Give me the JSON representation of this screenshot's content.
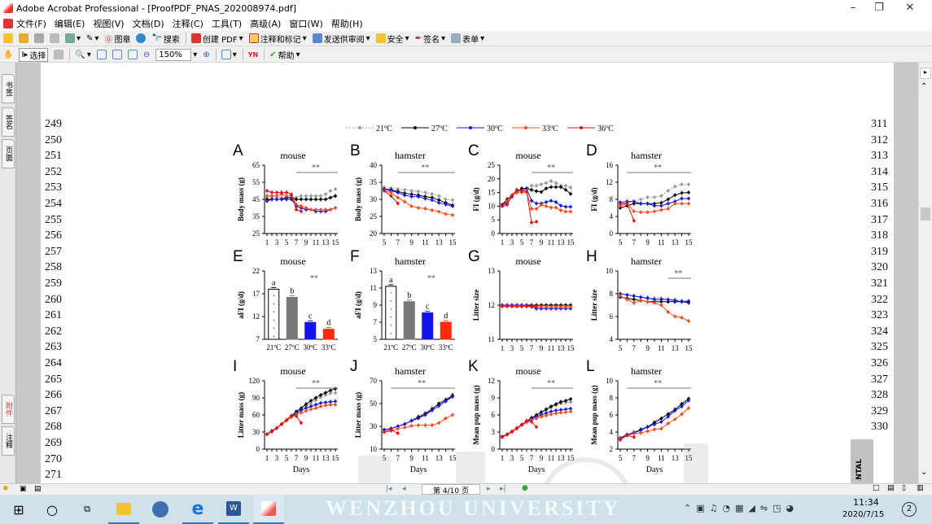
{
  "window": {
    "title": "Adobe Acrobat Professional - [ProofPDF_PNAS_202008974.pdf]"
  },
  "menu": [
    "文件(F)",
    "编辑(E)",
    "视图(V)",
    "文档(D)",
    "注释(C)",
    "工具(T)",
    "高级(A)",
    "窗口(W)",
    "帮助(H)"
  ],
  "toolbar1": {
    "stamp": "图章",
    "search": "搜索",
    "create_pdf": "创建 PDF",
    "comment": "注释和标记",
    "send": "发送供审阅",
    "security": "安全",
    "sign": "签名",
    "forms": "表单"
  },
  "toolbar2": {
    "select": "选择",
    "zoom": "150%",
    "help": "帮助"
  },
  "nav_tabs": {
    "bookmarks": "书签",
    "signatures": "签名",
    "pages": "页面",
    "attachments": "附件",
    "comments": "注释"
  },
  "line_numbers_left": [
    "249",
    "250",
    "251",
    "252",
    "253",
    "254",
    "255",
    "256",
    "257",
    "258",
    "259",
    "260",
    "261",
    "262",
    "263",
    "264",
    "265",
    "266",
    "267",
    "268",
    "269",
    "270",
    "271"
  ],
  "line_numbers_right": [
    "311",
    "312",
    "313",
    "314",
    "315",
    "316",
    "317",
    "318",
    "319",
    "320",
    "321",
    "322",
    "323",
    "324",
    "325",
    "326",
    "327",
    "328",
    "329",
    "330"
  ],
  "side_text": "NTAL",
  "status": {
    "page": "第 4/10 页"
  },
  "taskbar": {
    "time": "11:34",
    "date": "2020/7/15",
    "notifications": "2"
  },
  "watermark": "WENZHOU UNIVERSITY",
  "colors": {
    "21": "#999999",
    "27": "#000000",
    "30": "#1414e6",
    "33": "#ff4a1a",
    "36": "#e01010"
  },
  "chart_data": {
    "legend": [
      "21ºC",
      "27ºC",
      "30ºC",
      "33ºC",
      "36ºC"
    ],
    "panels": [
      {
        "letter": "A",
        "title": "mouse",
        "type": "line",
        "ylabel": "Body mass (g)",
        "xlabel": "",
        "x": [
          1,
          15
        ],
        "ylim": [
          25,
          65
        ],
        "yticks": [
          25,
          35,
          45,
          55,
          65
        ],
        "xticks": [
          1,
          3,
          5,
          7,
          9,
          11,
          13,
          15
        ],
        "sig": "**",
        "sig_range": [
          7,
          15
        ],
        "series": [
          [
            46,
            46,
            46,
            46,
            46,
            46,
            46,
            47,
            47,
            47,
            47,
            47,
            48,
            50,
            51
          ],
          [
            45,
            45,
            45,
            45,
            46,
            46,
            45,
            45,
            45,
            45,
            45,
            45,
            45,
            46,
            47
          ],
          [
            44,
            45,
            45,
            45,
            45,
            45,
            41,
            40,
            39,
            39,
            38,
            38,
            38,
            39,
            40
          ],
          [
            47,
            47,
            47,
            48,
            47,
            47,
            42,
            41,
            40,
            39,
            39,
            39,
            39,
            39,
            40
          ],
          [
            50,
            49,
            49,
            49,
            49,
            48,
            39,
            38
          ]
        ]
      },
      {
        "letter": "B",
        "title": "hamster",
        "type": "line",
        "ylabel": "Body mass (g)",
        "xlabel": "",
        "x": [
          5,
          15
        ],
        "ylim": [
          20,
          40
        ],
        "yticks": [
          20,
          25,
          30,
          35,
          40
        ],
        "xticks": [
          5,
          7,
          9,
          11,
          13,
          15
        ],
        "sig": "**",
        "sig_range": [
          7,
          15
        ],
        "series": [
          [
            33.5,
            33.3,
            33,
            32.8,
            32.5,
            32.3,
            32,
            31.6,
            31,
            30,
            29.8
          ],
          [
            33,
            32.8,
            32.3,
            31.8,
            31.5,
            31.2,
            30.8,
            30.5,
            29.8,
            29,
            28.3
          ],
          [
            33,
            32.5,
            32,
            31.2,
            30.8,
            30.8,
            30.2,
            29.8,
            29,
            28.5,
            28
          ],
          [
            32.5,
            32,
            30.5,
            29.3,
            28,
            27.5,
            27.3,
            26.8,
            26.4,
            25.7,
            25.4
          ],
          [
            32.5,
            31,
            28.8
          ]
        ]
      },
      {
        "letter": "C",
        "title": "mouse",
        "type": "line",
        "ylabel": "FI (g/d)",
        "xlabel": "",
        "x": [
          1,
          15
        ],
        "ylim": [
          0,
          25
        ],
        "yticks": [
          0,
          5,
          10,
          15,
          20,
          25
        ],
        "xticks": [
          1,
          3,
          5,
          7,
          9,
          11,
          13,
          15
        ],
        "sig": "**",
        "sig_range": [
          7,
          15
        ],
        "series": [
          [
            10.5,
            12,
            14,
            15.5,
            16,
            16.5,
            17.5,
            17.5,
            18,
            18.5,
            19.2,
            18.5,
            17.5,
            17.5,
            16.8
          ],
          [
            10.5,
            12.5,
            14,
            15,
            16.5,
            16.5,
            16,
            15.5,
            15.2,
            16.5,
            17,
            17,
            17,
            16,
            14.5
          ],
          [
            10.5,
            11,
            13.5,
            16,
            15.5,
            16.5,
            12,
            11,
            11,
            11.5,
            12,
            11.5,
            10.2,
            9.8,
            9.8
          ],
          [
            10,
            12,
            14,
            15,
            15,
            15,
            9,
            9,
            10.5,
            10,
            9.5,
            9.5,
            8.5,
            8,
            8
          ],
          [
            10,
            10.5,
            14,
            16,
            15.5,
            15.5,
            4,
            4.3
          ]
        ]
      },
      {
        "letter": "D",
        "title": "hamster",
        "type": "line",
        "ylabel": "FI (g/d)",
        "xlabel": "",
        "x": [
          5,
          15
        ],
        "ylim": [
          0,
          16
        ],
        "yticks": [
          0,
          4,
          8,
          12,
          16
        ],
        "xticks": [
          5,
          7,
          9,
          11,
          13,
          15
        ],
        "sig": "**",
        "sig_range": [
          6,
          15
        ],
        "series": [
          [
            7,
            7.2,
            7.5,
            8,
            8.5,
            8.5,
            8.8,
            10,
            11,
            11.5,
            11.5
          ],
          [
            6,
            6.5,
            7,
            7,
            7,
            7,
            7.2,
            8,
            9,
            9.5,
            9.6
          ],
          [
            7.3,
            7.5,
            7.5,
            7,
            7,
            6.5,
            6.5,
            7,
            7.5,
            8.2,
            8.2
          ],
          [
            6.5,
            7,
            5.2,
            5,
            5,
            5.2,
            5.5,
            5.8,
            7,
            7,
            7
          ],
          [
            7,
            7,
            3
          ]
        ]
      },
      {
        "letter": "E",
        "title": "mouse",
        "type": "bar",
        "ylabel": "aFI (g/d)",
        "xlabel": "",
        "categories": [
          "21ºC",
          "27ºC",
          "30ºC",
          "33ºC"
        ],
        "values": [
          18,
          16.2,
          10.7,
          9.2
        ],
        "letters": [
          "a",
          "b",
          "c",
          "d"
        ],
        "ylim": [
          7,
          22
        ],
        "yticks": [
          7,
          12,
          17,
          22
        ],
        "sig": "**"
      },
      {
        "letter": "F",
        "title": "hamster",
        "type": "bar",
        "ylabel": "aFI (g/d)",
        "xlabel": "",
        "categories": [
          "21ºC",
          "27ºC",
          "30ºC",
          "33ºC"
        ],
        "values": [
          11.2,
          9.4,
          8.1,
          7.0
        ],
        "letters": [
          "a",
          "b",
          "c",
          "d"
        ],
        "ylim": [
          5,
          13
        ],
        "yticks": [
          5,
          7,
          9,
          11,
          13
        ],
        "sig": "**"
      },
      {
        "letter": "G",
        "title": "mouse",
        "type": "line",
        "ylabel": "Litter size",
        "xlabel": "",
        "x": [
          1,
          15
        ],
        "ylim": [
          11,
          13
        ],
        "yticks": [
          11,
          12,
          13
        ],
        "xticks": [
          1,
          3,
          5,
          7,
          9,
          11,
          13,
          15
        ],
        "sig": "",
        "series": [
          [
            12,
            12,
            12,
            12,
            12,
            12,
            12,
            11.95,
            11.95,
            11.95,
            11.95,
            11.95,
            11.95,
            11.95,
            11.95
          ],
          [
            12,
            12,
            12,
            12,
            12,
            12,
            12,
            12,
            12,
            12,
            12,
            12,
            12,
            12,
            12
          ],
          [
            12,
            12,
            12,
            12,
            12,
            12,
            11.95,
            11.9,
            11.9,
            11.9,
            11.9,
            11.9,
            11.9,
            11.9,
            11.9
          ],
          [
            11.97,
            11.97,
            11.97,
            11.97,
            11.97,
            11.97,
            11.97,
            11.95,
            11.95,
            11.95,
            11.95,
            11.95,
            11.95,
            11.95,
            11.95
          ],
          [
            11.96,
            11.96,
            11.96,
            11.96,
            11.96,
            11.96,
            11.96,
            11.96
          ]
        ]
      },
      {
        "letter": "H",
        "title": "hamster",
        "type": "line",
        "ylabel": "Litter size",
        "xlabel": "",
        "x": [
          5,
          15
        ],
        "ylim": [
          4,
          10
        ],
        "yticks": [
          4,
          6,
          8,
          10
        ],
        "xticks": [
          5,
          7,
          9,
          11,
          13,
          15
        ],
        "sig": "**",
        "sig_range": [
          12,
          15
        ],
        "series": [
          [
            8,
            7.9,
            7.8,
            7.7,
            7.7,
            7.6,
            7.6,
            7.5,
            7.5,
            7.4,
            7.4
          ],
          [
            7.7,
            7.6,
            7.5,
            7.4,
            7.3,
            7.3,
            7.3,
            7.3,
            7.3,
            7.3,
            7.3
          ],
          [
            8,
            7.9,
            7.8,
            7.7,
            7.6,
            7.5,
            7.5,
            7.5,
            7.4,
            7.3,
            7.2
          ],
          [
            7.8,
            7.5,
            7.2,
            7.4,
            7.3,
            7.2,
            7,
            6.4,
            6,
            5.9,
            5.6
          ],
          []
        ]
      },
      {
        "letter": "I",
        "title": "mouse",
        "type": "line",
        "ylabel": "Litter mass (g)",
        "xlabel": "Days",
        "x": [
          1,
          15
        ],
        "ylim": [
          0,
          120
        ],
        "yticks": [
          0,
          30,
          60,
          90,
          120
        ],
        "xticks": [
          1,
          3,
          5,
          7,
          9,
          11,
          13,
          15
        ],
        "sig": "**",
        "sig_range": [
          7,
          15
        ],
        "series": [
          [
            26,
            32,
            37,
            44,
            51,
            57,
            65,
            70,
            75,
            80,
            86,
            91,
            95,
            98,
            99
          ],
          [
            26,
            32,
            37,
            44,
            51,
            58,
            66,
            72,
            79,
            85,
            90,
            95,
            99,
            103,
            106
          ],
          [
            26,
            32,
            37,
            44,
            51,
            58,
            63,
            68,
            72,
            75,
            78,
            81,
            82,
            83,
            84
          ],
          [
            26,
            31,
            37,
            44,
            50,
            56,
            61,
            64,
            67,
            70,
            72,
            75,
            77,
            78,
            78
          ],
          [
            26,
            31,
            37,
            44,
            51,
            59,
            58,
            46
          ]
        ]
      },
      {
        "letter": "J",
        "title": "hamster",
        "type": "line",
        "ylabel": "Litter mass (g)",
        "xlabel": "Days",
        "x": [
          5,
          15
        ],
        "ylim": [
          10,
          70
        ],
        "yticks": [
          10,
          30,
          50,
          70
        ],
        "xticks": [
          5,
          7,
          9,
          11,
          13,
          15
        ],
        "sig": "**",
        "sig_range": [
          6,
          15
        ],
        "series": [
          [
            27,
            28,
            30,
            32,
            35,
            39,
            42,
            46,
            50,
            54,
            58
          ],
          [
            27,
            28,
            30,
            32,
            35,
            38,
            41,
            45,
            50,
            53,
            57
          ],
          [
            27,
            28,
            30,
            32,
            35,
            37,
            40,
            44,
            48,
            52,
            56
          ],
          [
            25,
            26,
            28,
            29,
            30.5,
            31,
            31,
            31,
            33,
            37,
            40
          ],
          [
            25,
            27,
            24
          ]
        ]
      },
      {
        "letter": "K",
        "title": "mouse",
        "type": "line",
        "ylabel": "Mean pup mass (g)",
        "xlabel": "Days",
        "x": [
          1,
          15
        ],
        "ylim": [
          0,
          12
        ],
        "yticks": [
          0,
          3,
          6,
          9,
          12
        ],
        "xticks": [
          1,
          3,
          5,
          7,
          9,
          11,
          13,
          15
        ],
        "sig": "**",
        "sig_range": [
          7,
          15
        ],
        "series": [
          [
            2.2,
            2.6,
            3.1,
            3.6,
            4.3,
            4.9,
            5.4,
            5.9,
            6.3,
            6.8,
            7.3,
            7.7,
            8,
            8.2,
            8.3
          ],
          [
            2.2,
            2.6,
            3.1,
            3.7,
            4.3,
            4.9,
            5.5,
            6,
            6.5,
            7,
            7.5,
            7.9,
            8.3,
            8.5,
            8.8
          ],
          [
            2.2,
            2.6,
            3.1,
            3.7,
            4.3,
            4.9,
            5.3,
            5.7,
            6,
            6.3,
            6.6,
            6.8,
            6.9,
            7,
            7.1
          ],
          [
            2.1,
            2.5,
            3,
            3.6,
            4.2,
            4.7,
            5.1,
            5.4,
            5.7,
            5.9,
            6.1,
            6.3,
            6.4,
            6.5,
            6.6
          ],
          [
            2.1,
            2.6,
            3.1,
            3.7,
            4.3,
            5,
            4.8,
            3.9
          ]
        ]
      },
      {
        "letter": "L",
        "title": "hamster",
        "type": "line",
        "ylabel": "Mean pup mass (g)",
        "xlabel": "Days",
        "x": [
          5,
          15
        ],
        "ylim": [
          2,
          10
        ],
        "yticks": [
          2,
          4,
          6,
          8,
          10
        ],
        "xticks": [
          5,
          7,
          9,
          11,
          13,
          15
        ],
        "sig": "**",
        "sig_range": [
          6,
          15
        ],
        "series": [
          [
            3.3,
            3.7,
            4,
            4.3,
            4.6,
            5.2,
            5.6,
            6.1,
            6.7,
            7.2,
            7.9
          ],
          [
            3.3,
            3.7,
            3.9,
            4.3,
            4.6,
            5.1,
            5.6,
            6.1,
            6.6,
            7.3,
            7.9
          ],
          [
            3.3,
            3.7,
            3.9,
            4.2,
            4.6,
            4.9,
            5.2,
            5.8,
            6.5,
            7,
            7.7
          ],
          [
            3.2,
            3.6,
            3.8,
            3.9,
            4.1,
            4.3,
            4.4,
            5,
            5.5,
            6.1,
            6.8
          ],
          [
            3.1,
            3.6,
            3.4
          ]
        ]
      }
    ]
  }
}
